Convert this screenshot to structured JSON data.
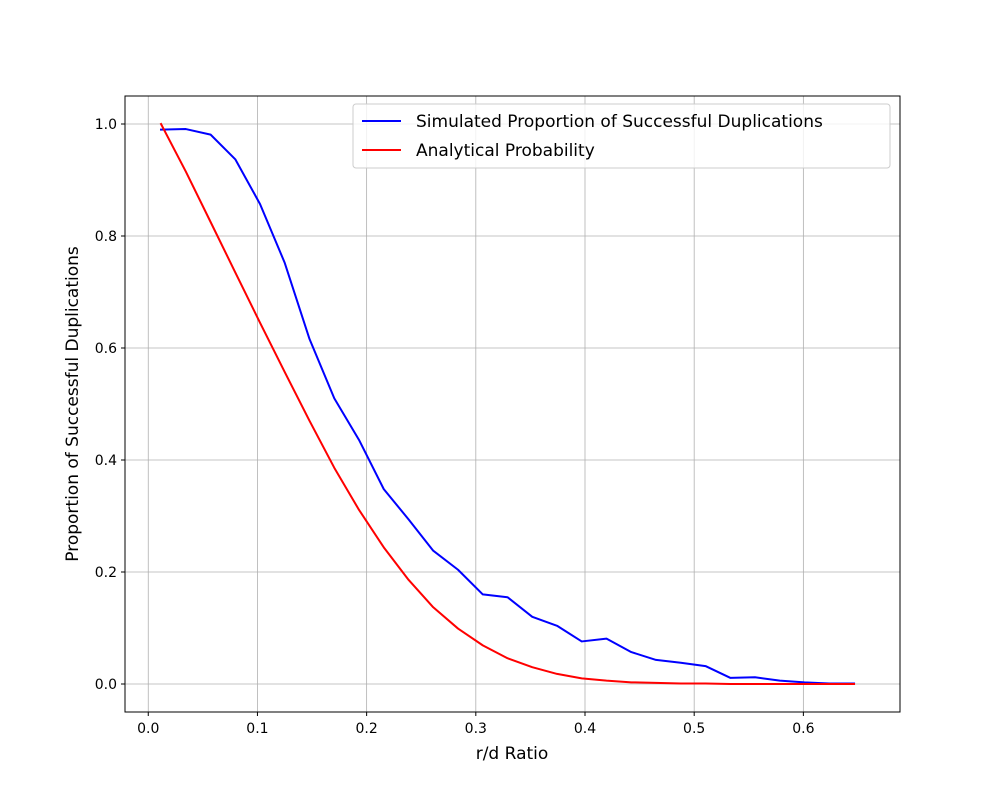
{
  "chart_data": {
    "type": "line",
    "title": "",
    "xlabel": "r/d Ratio",
    "ylabel": "Proportion of Successful Duplications",
    "xlim": [
      -0.0213,
      0.6885
    ],
    "ylim": [
      -0.05,
      1.05
    ],
    "xticks": [
      0.0,
      0.1,
      0.2,
      0.3,
      0.4,
      0.5,
      0.6
    ],
    "xtick_labels": [
      "0.0",
      "0.1",
      "0.2",
      "0.3",
      "0.4",
      "0.5",
      "0.6"
    ],
    "yticks": [
      0.0,
      0.2,
      0.4,
      0.6,
      0.8,
      1.0
    ],
    "ytick_labels": [
      "0.0",
      "0.2",
      "0.4",
      "0.6",
      "0.8",
      "1.0"
    ],
    "grid": true,
    "legend_position": "upper right",
    "series": [
      {
        "name": "Simulated Proportion of Successful Duplications",
        "color": "#0000ff",
        "x": [
          0.0117,
          0.0344,
          0.0571,
          0.0797,
          0.1024,
          0.125,
          0.1477,
          0.1704,
          0.193,
          0.2157,
          0.2384,
          0.261,
          0.2837,
          0.3064,
          0.329,
          0.3517,
          0.3744,
          0.397,
          0.4197,
          0.4424,
          0.465,
          0.4877,
          0.5104,
          0.533,
          0.5557,
          0.5784,
          0.601,
          0.6237,
          0.6464
        ],
        "y": [
          0.99,
          0.991,
          0.981,
          0.937,
          0.857,
          0.752,
          0.616,
          0.51,
          0.436,
          0.348,
          0.294,
          0.238,
          0.204,
          0.16,
          0.155,
          0.12,
          0.104,
          0.076,
          0.081,
          0.057,
          0.043,
          0.038,
          0.032,
          0.011,
          0.012,
          0.006,
          0.003,
          0.001,
          0.001
        ]
      },
      {
        "name": "Analytical Probability",
        "color": "#ff0000",
        "x": [
          0.0117,
          0.0344,
          0.0571,
          0.0797,
          0.1024,
          0.125,
          0.1477,
          0.1704,
          0.193,
          0.2157,
          0.2384,
          0.261,
          0.2837,
          0.3064,
          0.329,
          0.3517,
          0.3744,
          0.397,
          0.4197,
          0.4424,
          0.465,
          0.4877,
          0.5104,
          0.533,
          0.5557,
          0.5784,
          0.601,
          0.6237,
          0.6464
        ],
        "y": [
          1.0,
          0.915,
          0.825,
          0.735,
          0.645,
          0.557,
          0.47,
          0.386,
          0.311,
          0.244,
          0.186,
          0.137,
          0.099,
          0.069,
          0.046,
          0.03,
          0.018,
          0.01,
          0.006,
          0.003,
          0.002,
          0.001,
          0.001,
          0.0,
          0.0,
          0.0,
          0.0,
          0.0,
          0.0
        ]
      }
    ]
  }
}
